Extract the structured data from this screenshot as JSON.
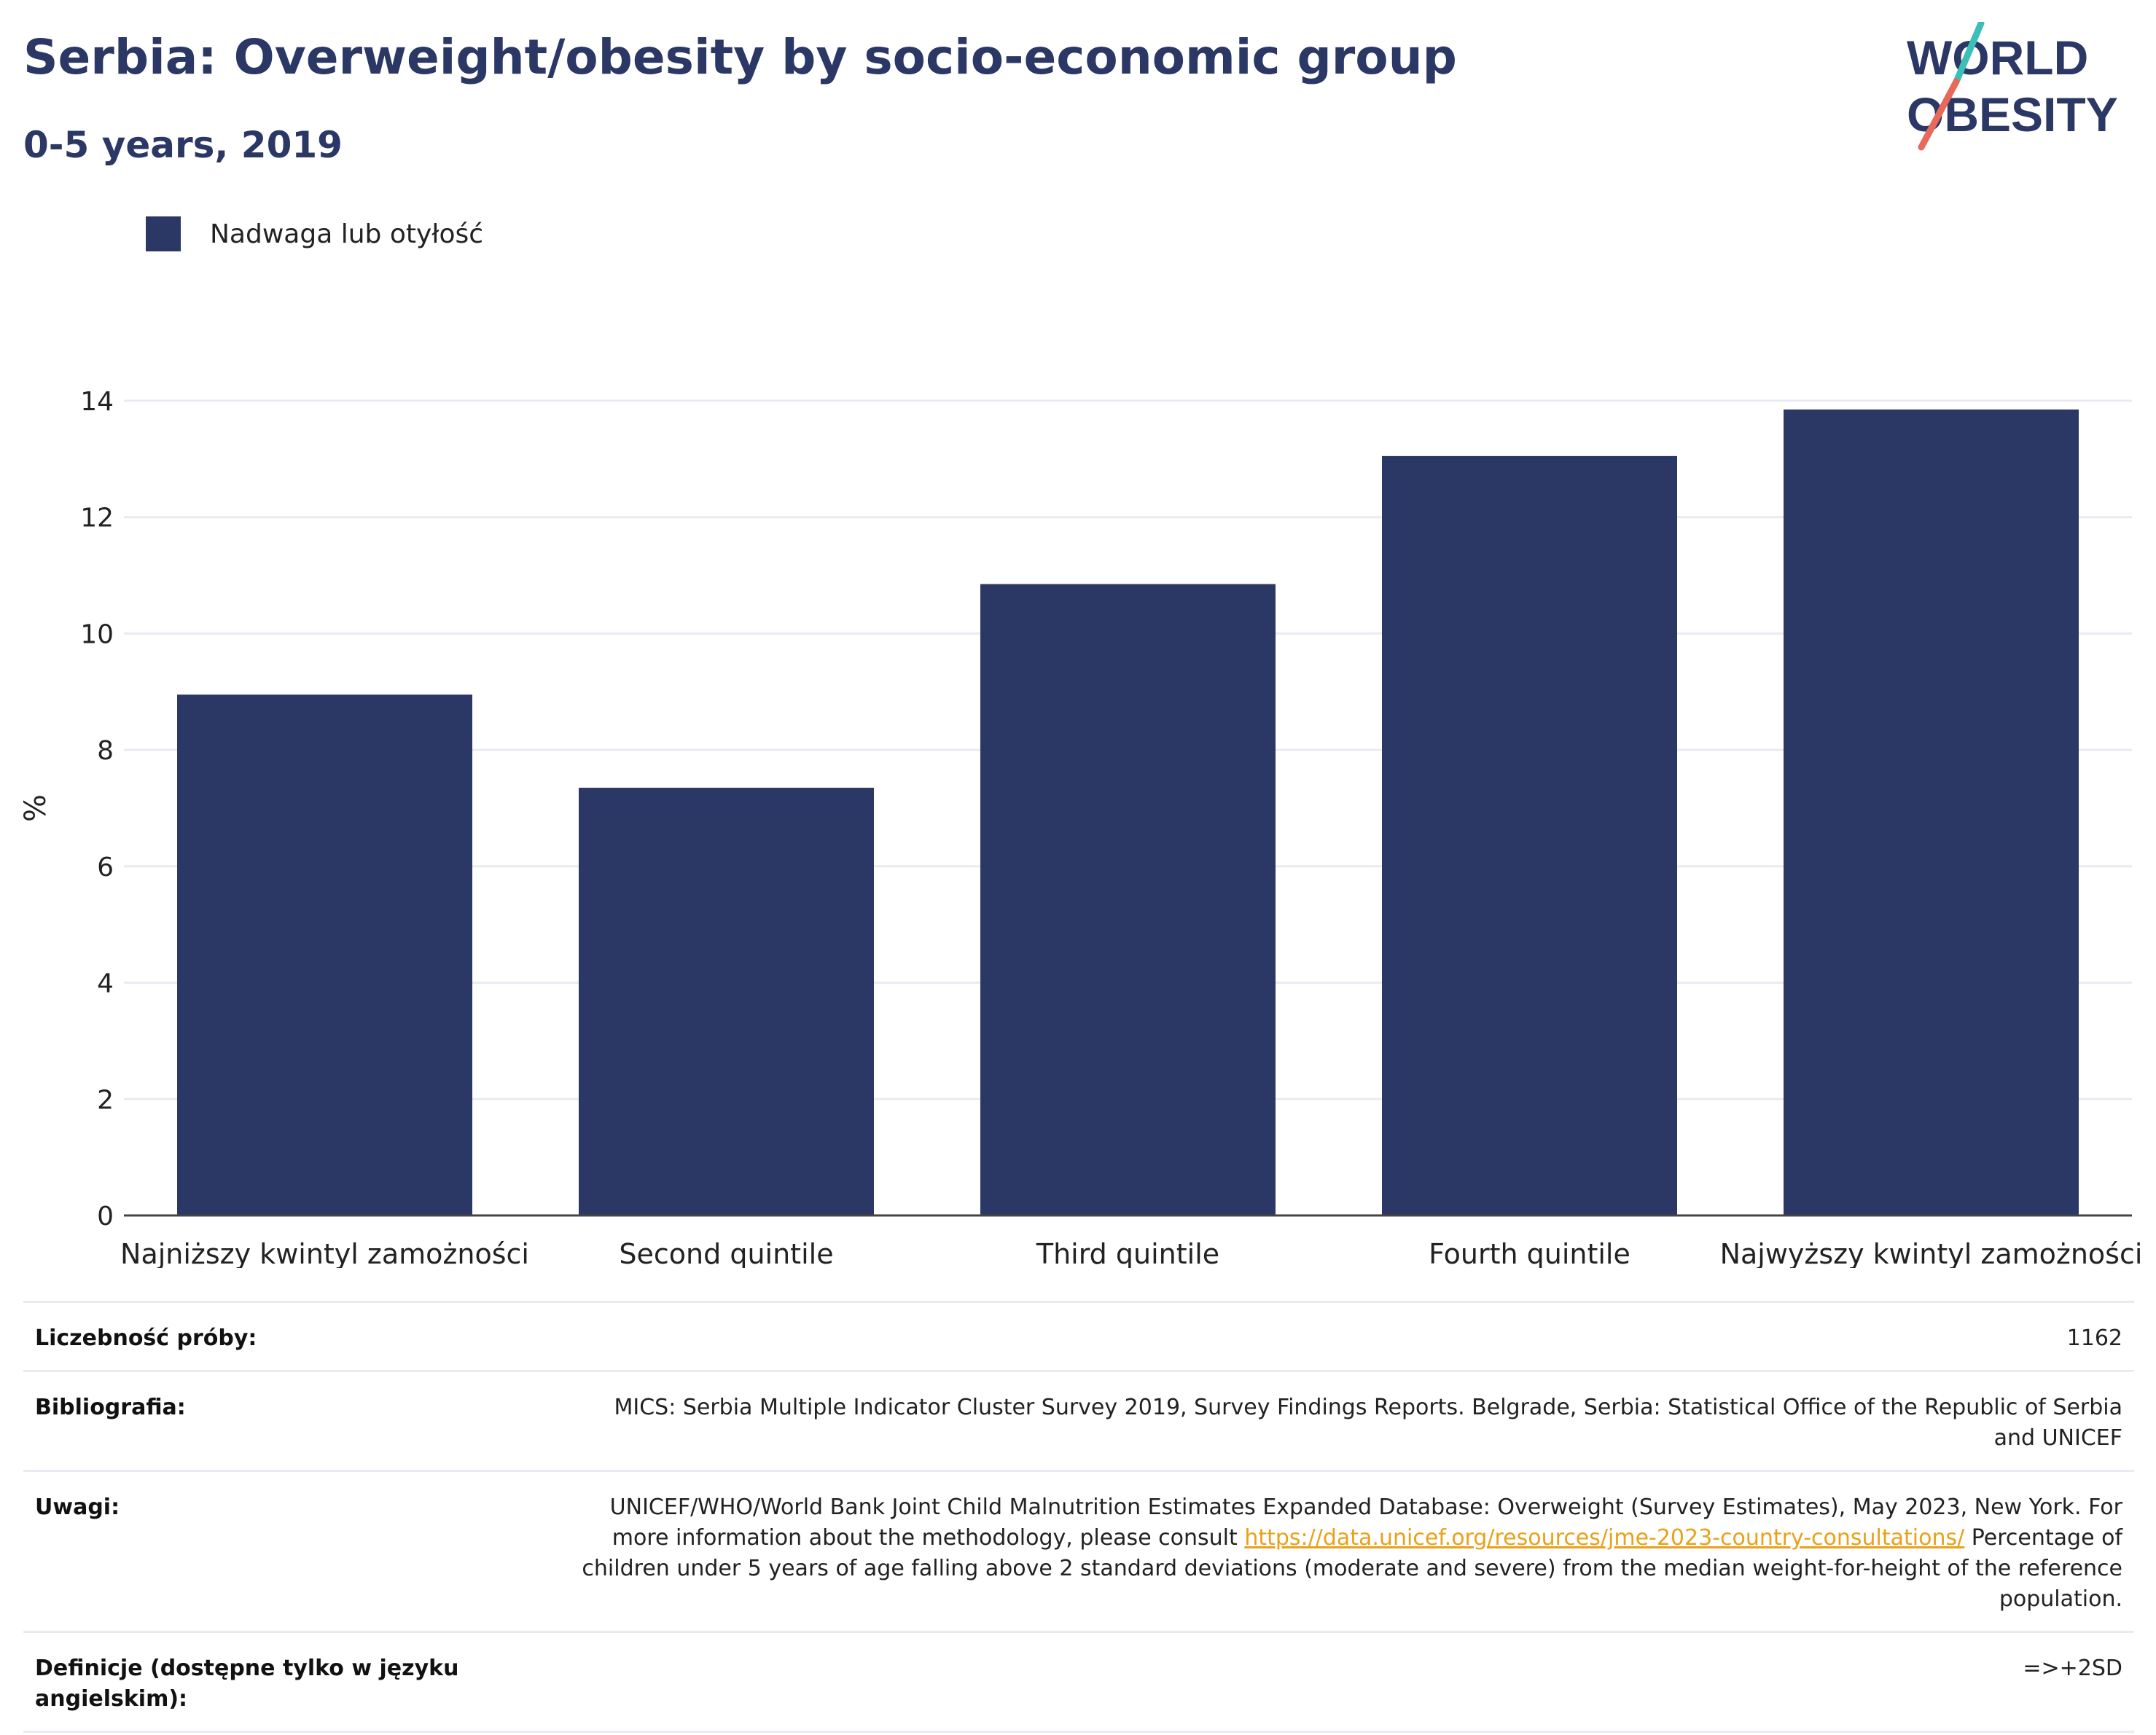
{
  "header": {
    "title": "Serbia: Overweight/obesity by socio-economic group",
    "subtitle": "0-5 years, 2019"
  },
  "logo": {
    "line1": "WORLD",
    "line2": "OBESITY",
    "colors": {
      "text": "#2b3764",
      "slash_top": "#3bbfb7",
      "slash_bottom": "#e8695a"
    }
  },
  "legend": {
    "items": [
      {
        "label": "Nadwaga lub otyłość",
        "color": "#2b3764"
      }
    ]
  },
  "chart_data": {
    "type": "bar",
    "categories": [
      "Najniższy kwintyl zamożności",
      "Second quintile",
      "Third quintile",
      "Fourth quintile",
      "Najwyższy kwintyl zamożności"
    ],
    "series": [
      {
        "name": "Nadwaga lub otyłość",
        "values": [
          8.95,
          7.35,
          10.85,
          13.05,
          13.85
        ],
        "color": "#2b3764"
      }
    ],
    "ylabel": "%",
    "xlabel": "",
    "ylim": [
      0,
      14
    ],
    "yticks": [
      0,
      2,
      4,
      6,
      8,
      10,
      12,
      14
    ],
    "grid": true,
    "legend_position": "top-left"
  },
  "info_table": {
    "rows": [
      {
        "key": "Liczebność próby:",
        "value": [
          "1162"
        ]
      },
      {
        "key": "Bibliografia:",
        "value": [
          "MICS: Serbia Multiple Indicator Cluster Survey 2019, Survey Findings Reports. Belgrade, Serbia: Statistical Office of the Republic of Serbia and UNICEF"
        ]
      },
      {
        "key": "Uwagi:",
        "value": [
          "UNICEF/WHO/World Bank Joint Child Malnutrition Estimates Expanded Database: Overweight (Survey Estimates), May 2023, New York. For more information about the methodology, please consult ",
          "https://data.unicef.org/resources/jme-2023-country-consultations/",
          " Percentage of children under 5 years of age falling above 2 standard deviations (moderate and severe) from the median weight-for-height of the reference population."
        ]
      },
      {
        "key": "Definicje (dostępne tylko w języku angielskim):",
        "value": [
          "=>+2SD"
        ]
      }
    ]
  }
}
